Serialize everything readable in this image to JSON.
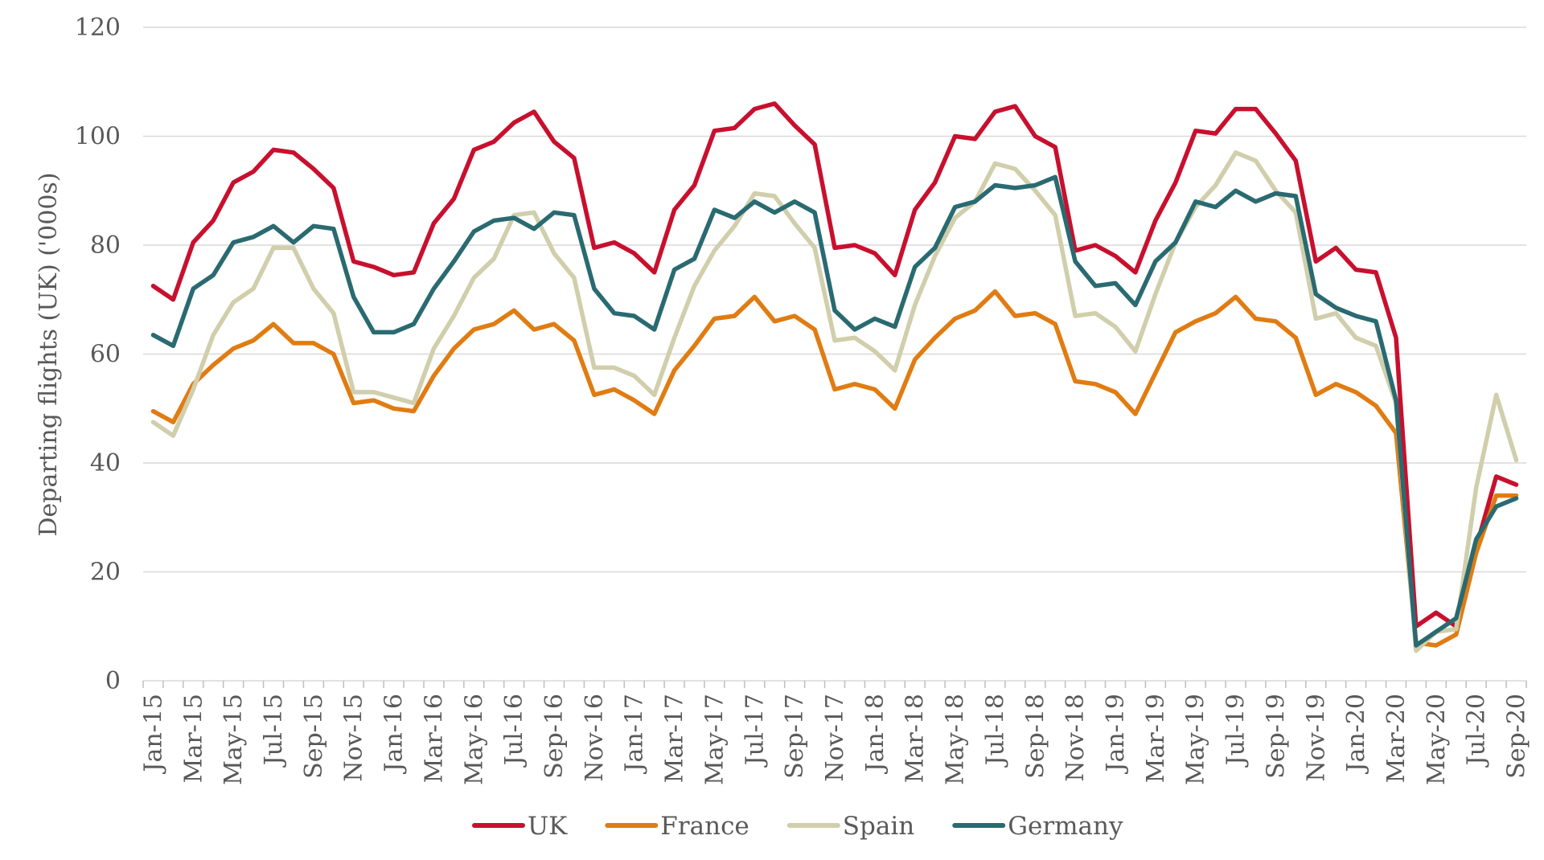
{
  "chart_data": {
    "type": "line",
    "ylabel": "Departing flights (UK) ('000s)",
    "xlabel": "",
    "ylim": [
      0,
      120
    ],
    "yticks": [
      0,
      20,
      40,
      60,
      80,
      100,
      120
    ],
    "grid": true,
    "legend_position": "bottom",
    "x": [
      "Jan-15",
      "Feb-15",
      "Mar-15",
      "Apr-15",
      "May-15",
      "Jun-15",
      "Jul-15",
      "Aug-15",
      "Sep-15",
      "Oct-15",
      "Nov-15",
      "Dec-15",
      "Jan-16",
      "Feb-16",
      "Mar-16",
      "Apr-16",
      "May-16",
      "Jun-16",
      "Jul-16",
      "Aug-16",
      "Sep-16",
      "Oct-16",
      "Nov-16",
      "Dec-16",
      "Jan-17",
      "Feb-17",
      "Mar-17",
      "Apr-17",
      "May-17",
      "Jun-17",
      "Jul-17",
      "Aug-17",
      "Sep-17",
      "Oct-17",
      "Nov-17",
      "Dec-17",
      "Jan-18",
      "Feb-18",
      "Mar-18",
      "Apr-18",
      "May-18",
      "Jun-18",
      "Jul-18",
      "Aug-18",
      "Sep-18",
      "Oct-18",
      "Nov-18",
      "Dec-18",
      "Jan-19",
      "Feb-19",
      "Mar-19",
      "Apr-19",
      "May-19",
      "Jun-19",
      "Jul-19",
      "Aug-19",
      "Sep-19",
      "Oct-19",
      "Nov-19",
      "Dec-19",
      "Jan-20",
      "Feb-20",
      "Mar-20",
      "Apr-20",
      "May-20",
      "Jun-20",
      "Jul-20",
      "Aug-20",
      "Sep-20"
    ],
    "tick_labels": [
      "Jan-15",
      "Mar-15",
      "May-15",
      "Jul-15",
      "Sep-15",
      "Nov-15",
      "Jan-16",
      "Mar-16",
      "May-16",
      "Jul-16",
      "Sep-16",
      "Nov-16",
      "Jan-17",
      "Mar-17",
      "May-17",
      "Jul-17",
      "Sep-17",
      "Nov-17",
      "Jan-18",
      "Mar-18",
      "May-18",
      "Jul-18",
      "Sep-18",
      "Nov-18",
      "Jan-19",
      "Mar-19",
      "May-19",
      "Jul-19",
      "Sep-19",
      "Nov-19",
      "Jan-20",
      "Mar-20",
      "May-20",
      "Jul-20",
      "Sep-20"
    ],
    "series": [
      {
        "name": "UK",
        "color": "#c8102e",
        "values": [
          72.5,
          70,
          80.5,
          84.5,
          91.5,
          93.5,
          97.5,
          97,
          94,
          90.5,
          77,
          76,
          74.5,
          75,
          84,
          88.5,
          97.5,
          99,
          102.5,
          104.5,
          99,
          96,
          79.5,
          80.5,
          78.5,
          75,
          86.5,
          91,
          101,
          101.5,
          105,
          106,
          102,
          98.5,
          79.5,
          80,
          78.5,
          74.5,
          86.5,
          91.5,
          100,
          99.5,
          104.5,
          105.5,
          100,
          98,
          79,
          80,
          78,
          75,
          84.5,
          91.5,
          101,
          100.5,
          105,
          105,
          100.5,
          95.5,
          77,
          79.5,
          75.5,
          75,
          63,
          10,
          12.5,
          10,
          24.5,
          37.5,
          36
        ]
      },
      {
        "name": "France",
        "color": "#e07c12",
        "values": [
          49.5,
          47.5,
          54.5,
          58,
          61,
          62.5,
          65.5,
          62,
          62,
          60,
          51,
          51.5,
          50,
          49.5,
          56,
          61,
          64.5,
          65.5,
          68,
          64.5,
          65.5,
          62.5,
          52.5,
          53.5,
          51.5,
          49,
          57,
          61.5,
          66.5,
          67,
          70.5,
          66,
          67,
          64.5,
          53.5,
          54.5,
          53.5,
          50,
          59,
          63,
          66.5,
          68,
          71.5,
          67,
          67.5,
          65.5,
          55,
          54.5,
          53,
          49,
          56.5,
          64,
          66,
          67.5,
          70.5,
          66.5,
          66,
          63,
          52.5,
          54.5,
          53,
          50.5,
          45.5,
          7,
          6.5,
          8.5,
          23.5,
          34,
          34
        ]
      },
      {
        "name": "Spain",
        "color": "#d1ceac",
        "values": [
          47.5,
          45,
          53.5,
          63.5,
          69.5,
          72,
          79.5,
          79.5,
          72,
          67.5,
          53,
          53,
          52,
          51,
          61,
          67,
          74,
          77.5,
          85.5,
          86,
          78.5,
          74,
          57.5,
          57.5,
          56,
          52.5,
          63,
          72.5,
          79,
          83.5,
          89.5,
          89,
          84,
          79.5,
          62.5,
          63,
          60.5,
          57,
          69,
          78,
          85,
          88,
          95,
          94,
          90,
          85.5,
          67,
          67.5,
          65,
          60.5,
          71,
          80.5,
          87,
          91,
          97,
          95.5,
          90,
          86,
          66.5,
          67.5,
          63,
          61.5,
          51,
          5.5,
          9,
          9.5,
          35.5,
          52.5,
          40.5
        ]
      },
      {
        "name": "Germany",
        "color": "#2a6a71",
        "values": [
          63.5,
          61.5,
          72,
          74.5,
          80.5,
          81.5,
          83.5,
          80.5,
          83.5,
          83,
          70.5,
          64,
          64,
          65.5,
          72,
          77,
          82.5,
          84.5,
          85,
          83,
          86,
          85.5,
          72,
          67.5,
          67,
          64.5,
          75.5,
          77.5,
          86.5,
          85,
          88,
          86,
          88,
          86,
          68,
          64.5,
          66.5,
          65,
          76,
          79.5,
          87,
          88,
          91,
          90.5,
          91,
          92.5,
          77,
          72.5,
          73,
          69,
          77,
          80.5,
          88,
          87,
          90,
          88,
          89.5,
          89,
          71,
          68.5,
          67,
          66,
          51.5,
          6.5,
          9,
          11.5,
          26,
          32,
          33.5
        ]
      }
    ]
  }
}
